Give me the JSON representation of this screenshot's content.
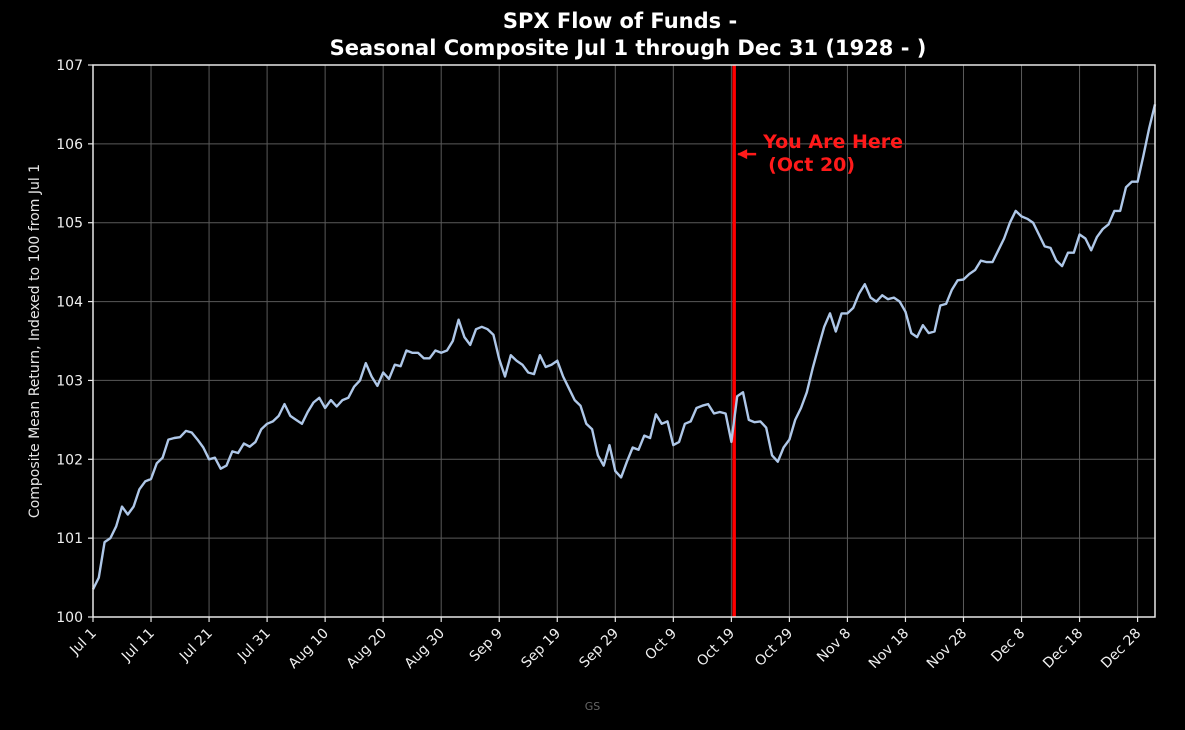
{
  "chart_data": {
    "type": "line",
    "title_line1": "SPX Flow of Funds -",
    "title_line2": "Seasonal Composite Jul 1 through Dec 31 (1928 - )",
    "xlabel": "",
    "ylabel": "Composite Mean Return, Indexed to 100 from Jul 1",
    "x_range": [
      "Jul 1",
      "Dec 31"
    ],
    "ylim": [
      100,
      107
    ],
    "y_ticks": [
      100,
      101,
      102,
      103,
      104,
      105,
      106,
      107
    ],
    "x_tick_labels": [
      "Jul 1",
      "Jul 11",
      "Jul 21",
      "Jul 31",
      "Aug 10",
      "Aug 20",
      "Aug 30",
      "Sep 9",
      "Sep 19",
      "Sep 29",
      "Oct 9",
      "Oct 19",
      "Oct 29",
      "Nov 8",
      "Nov 18",
      "Nov 28",
      "Dec 8",
      "Dec 18",
      "Dec 28"
    ],
    "grid": true,
    "line_color": "#aec7e8",
    "marker": {
      "label": "Oct 20",
      "color": "#ff0000"
    },
    "annotation": {
      "line1": "You Are Here",
      "line2": "(Oct 20)",
      "color": "#ff1a1a"
    },
    "series": [
      {
        "points": [
          [
            "Jul 1",
            100.35
          ],
          [
            "Jul 2",
            100.5
          ],
          [
            "Jul 3",
            100.95
          ],
          [
            "Jul 4",
            101.0
          ],
          [
            "Jul 5",
            101.15
          ],
          [
            "Jul 6",
            101.4
          ],
          [
            "Jul 7",
            101.3
          ],
          [
            "Jul 8",
            101.4
          ],
          [
            "Jul 9",
            101.62
          ],
          [
            "Jul 10",
            101.72
          ],
          [
            "Jul 11",
            101.75
          ],
          [
            "Jul 12",
            101.95
          ],
          [
            "Jul 13",
            102.02
          ],
          [
            "Jul 14",
            102.25
          ],
          [
            "Jul 15",
            102.27
          ],
          [
            "Jul 16",
            102.28
          ],
          [
            "Jul 17",
            102.36
          ],
          [
            "Jul 18",
            102.34
          ],
          [
            "Jul 19",
            102.25
          ],
          [
            "Jul 20",
            102.15
          ],
          [
            "Jul 21",
            102.0
          ],
          [
            "Jul 22",
            102.02
          ],
          [
            "Jul 23",
            101.88
          ],
          [
            "Jul 24",
            101.92
          ],
          [
            "Jul 25",
            102.1
          ],
          [
            "Jul 26",
            102.08
          ],
          [
            "Jul 27",
            102.2
          ],
          [
            "Jul 28",
            102.16
          ],
          [
            "Jul 29",
            102.22
          ],
          [
            "Jul 30",
            102.38
          ],
          [
            "Jul 31",
            102.45
          ],
          [
            "Aug 1",
            102.48
          ],
          [
            "Aug 2",
            102.55
          ],
          [
            "Aug 3",
            102.7
          ],
          [
            "Aug 4",
            102.55
          ],
          [
            "Aug 5",
            102.5
          ],
          [
            "Aug 6",
            102.45
          ],
          [
            "Aug 7",
            102.6
          ],
          [
            "Aug 8",
            102.72
          ],
          [
            "Aug 9",
            102.78
          ],
          [
            "Aug 10",
            102.65
          ],
          [
            "Aug 11",
            102.75
          ],
          [
            "Aug 12",
            102.67
          ],
          [
            "Aug 13",
            102.75
          ],
          [
            "Aug 14",
            102.78
          ],
          [
            "Aug 15",
            102.92
          ],
          [
            "Aug 16",
            103.0
          ],
          [
            "Aug 17",
            103.22
          ],
          [
            "Aug 18",
            103.05
          ],
          [
            "Aug 19",
            102.93
          ],
          [
            "Aug 20",
            103.1
          ],
          [
            "Aug 21",
            103.02
          ],
          [
            "Aug 22",
            103.2
          ],
          [
            "Aug 23",
            103.18
          ],
          [
            "Aug 24",
            103.38
          ],
          [
            "Aug 25",
            103.35
          ],
          [
            "Aug 26",
            103.35
          ],
          [
            "Aug 27",
            103.28
          ],
          [
            "Aug 28",
            103.28
          ],
          [
            "Aug 29",
            103.38
          ],
          [
            "Aug 30",
            103.35
          ],
          [
            "Aug 31",
            103.38
          ],
          [
            "Sep 1",
            103.5
          ],
          [
            "Sep 2",
            103.77
          ],
          [
            "Sep 3",
            103.55
          ],
          [
            "Sep 4",
            103.45
          ],
          [
            "Sep 5",
            103.65
          ],
          [
            "Sep 6",
            103.68
          ],
          [
            "Sep 7",
            103.65
          ],
          [
            "Sep 8",
            103.58
          ],
          [
            "Sep 9",
            103.27
          ],
          [
            "Sep 10",
            103.05
          ],
          [
            "Sep 11",
            103.32
          ],
          [
            "Sep 12",
            103.25
          ],
          [
            "Sep 13",
            103.2
          ],
          [
            "Sep 14",
            103.1
          ],
          [
            "Sep 15",
            103.08
          ],
          [
            "Sep 16",
            103.32
          ],
          [
            "Sep 17",
            103.17
          ],
          [
            "Sep 18",
            103.2
          ],
          [
            "Sep 19",
            103.25
          ],
          [
            "Sep 20",
            103.05
          ],
          [
            "Sep 21",
            102.9
          ],
          [
            "Sep 22",
            102.75
          ],
          [
            "Sep 23",
            102.68
          ],
          [
            "Sep 24",
            102.45
          ],
          [
            "Sep 25",
            102.38
          ],
          [
            "Sep 26",
            102.05
          ],
          [
            "Sep 27",
            101.92
          ],
          [
            "Sep 28",
            102.18
          ],
          [
            "Sep 29",
            101.85
          ],
          [
            "Sep 30",
            101.77
          ],
          [
            "Oct 1",
            101.97
          ],
          [
            "Oct 2",
            102.15
          ],
          [
            "Oct 3",
            102.12
          ],
          [
            "Oct 4",
            102.3
          ],
          [
            "Oct 5",
            102.27
          ],
          [
            "Oct 6",
            102.57
          ],
          [
            "Oct 7",
            102.45
          ],
          [
            "Oct 8",
            102.48
          ],
          [
            "Oct 9",
            102.18
          ],
          [
            "Oct 10",
            102.22
          ],
          [
            "Oct 11",
            102.45
          ],
          [
            "Oct 12",
            102.48
          ],
          [
            "Oct 13",
            102.65
          ],
          [
            "Oct 14",
            102.68
          ],
          [
            "Oct 15",
            102.7
          ],
          [
            "Oct 16",
            102.58
          ],
          [
            "Oct 17",
            102.6
          ],
          [
            "Oct 18",
            102.58
          ],
          [
            "Oct 19",
            102.22
          ],
          [
            "Oct 20",
            102.8
          ],
          [
            "Oct 21",
            102.85
          ],
          [
            "Oct 22",
            102.5
          ],
          [
            "Oct 23",
            102.47
          ],
          [
            "Oct 24",
            102.48
          ],
          [
            "Oct 25",
            102.4
          ],
          [
            "Oct 26",
            102.05
          ],
          [
            "Oct 27",
            101.97
          ],
          [
            "Oct 28",
            102.15
          ],
          [
            "Oct 29",
            102.25
          ],
          [
            "Oct 30",
            102.5
          ],
          [
            "Oct 31",
            102.65
          ],
          [
            "Nov 1",
            102.85
          ],
          [
            "Nov 2",
            103.15
          ],
          [
            "Nov 3",
            103.42
          ],
          [
            "Nov 4",
            103.68
          ],
          [
            "Nov 5",
            103.85
          ],
          [
            "Nov 6",
            103.62
          ],
          [
            "Nov 7",
            103.85
          ],
          [
            "Nov 8",
            103.85
          ],
          [
            "Nov 9",
            103.92
          ],
          [
            "Nov 10",
            104.1
          ],
          [
            "Nov 11",
            104.22
          ],
          [
            "Nov 12",
            104.05
          ],
          [
            "Nov 13",
            104.0
          ],
          [
            "Nov 14",
            104.08
          ],
          [
            "Nov 15",
            104.03
          ],
          [
            "Nov 16",
            104.05
          ],
          [
            "Nov 17",
            104.0
          ],
          [
            "Nov 18",
            103.87
          ],
          [
            "Nov 19",
            103.6
          ],
          [
            "Nov 20",
            103.55
          ],
          [
            "Nov 21",
            103.7
          ],
          [
            "Nov 22",
            103.6
          ],
          [
            "Nov 23",
            103.62
          ],
          [
            "Nov 24",
            103.95
          ],
          [
            "Nov 25",
            103.97
          ],
          [
            "Nov 26",
            104.15
          ],
          [
            "Nov 27",
            104.27
          ],
          [
            "Nov 28",
            104.28
          ],
          [
            "Nov 29",
            104.35
          ],
          [
            "Nov 30",
            104.4
          ],
          [
            "Dec 1",
            104.52
          ],
          [
            "Dec 2",
            104.5
          ],
          [
            "Dec 3",
            104.5
          ],
          [
            "Dec 4",
            104.65
          ],
          [
            "Dec 5",
            104.8
          ],
          [
            "Dec 6",
            105.0
          ],
          [
            "Dec 7",
            105.15
          ],
          [
            "Dec 8",
            105.08
          ],
          [
            "Dec 9",
            105.05
          ],
          [
            "Dec 10",
            105.0
          ],
          [
            "Dec 11",
            104.85
          ],
          [
            "Dec 12",
            104.7
          ],
          [
            "Dec 13",
            104.68
          ],
          [
            "Dec 14",
            104.52
          ],
          [
            "Dec 15",
            104.45
          ],
          [
            "Dec 16",
            104.62
          ],
          [
            "Dec 17",
            104.62
          ],
          [
            "Dec 18",
            104.85
          ],
          [
            "Dec 19",
            104.8
          ],
          [
            "Dec 20",
            104.65
          ],
          [
            "Dec 21",
            104.82
          ],
          [
            "Dec 22",
            104.92
          ],
          [
            "Dec 23",
            104.98
          ],
          [
            "Dec 24",
            105.15
          ],
          [
            "Dec 25",
            105.15
          ],
          [
            "Dec 26",
            105.45
          ],
          [
            "Dec 27",
            105.52
          ],
          [
            "Dec 28",
            105.52
          ],
          [
            "Dec 29",
            105.85
          ],
          [
            "Dec 30",
            106.2
          ],
          [
            "Dec 31",
            106.5
          ]
        ]
      }
    ]
  },
  "footer": {
    "watermark": "GS"
  }
}
